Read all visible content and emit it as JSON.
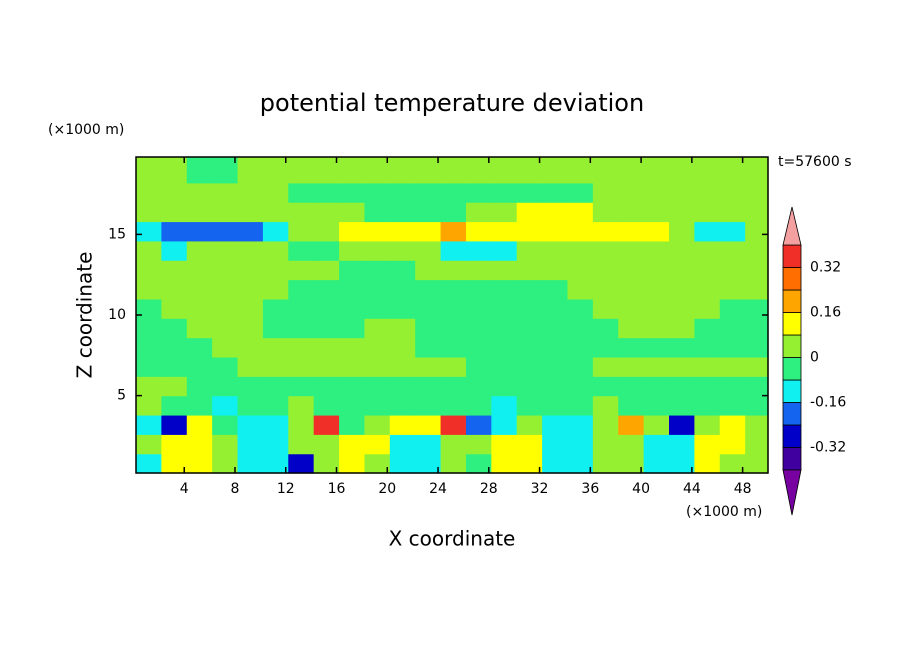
{
  "chart_data": {
    "type": "contour",
    "title": "potential temperature deviation",
    "x_label": "X coordinate",
    "y_label": "Z coordinate",
    "x_unit": "(×1000 m)",
    "y_unit": "(×1000 m)",
    "annotation": "t=57600 s",
    "xlim": [
      0.2,
      50
    ],
    "ylim": [
      0.2,
      19.8
    ],
    "xticks": [
      4,
      8,
      12,
      16,
      20,
      24,
      28,
      32,
      36,
      40,
      44,
      48
    ],
    "yticks": [
      5,
      10,
      15
    ],
    "x": [
      1.2,
      3.2,
      5.2,
      7.2,
      9.2,
      11.2,
      13.2,
      15.2,
      17.2,
      19.2,
      21.2,
      23.2,
      25.2,
      27.2,
      29.2,
      31.2,
      33.2,
      35.2,
      37.2,
      39.2,
      41.2,
      43.2,
      45.2,
      47.2,
      49.2
    ],
    "y": [
      0.8,
      2.0,
      3.2,
      4.4,
      5.6,
      6.8,
      8.0,
      9.2,
      10.4,
      11.6,
      12.8,
      14.0,
      15.2,
      16.4,
      17.6,
      18.8
    ],
    "z": [
      [
        -0.12,
        0.12,
        0.12,
        0.04,
        -0.12,
        -0.12,
        -0.28,
        0.04,
        0.12,
        0.04,
        -0.12,
        -0.12,
        0.04,
        -0.04,
        0.12,
        0.12,
        -0.12,
        -0.12,
        0.04,
        0.04,
        -0.12,
        -0.12,
        0.12,
        0.04,
        0.04
      ],
      [
        0.04,
        0.12,
        0.12,
        0.04,
        -0.12,
        -0.12,
        0.04,
        0.04,
        0.12,
        0.12,
        -0.12,
        -0.12,
        0.04,
        0.04,
        0.12,
        0.12,
        -0.12,
        -0.12,
        0.04,
        0.04,
        -0.12,
        -0.12,
        0.12,
        0.12,
        0.04
      ],
      [
        -0.12,
        -0.28,
        0.12,
        -0.04,
        -0.12,
        -0.12,
        0.04,
        0.36,
        -0.04,
        0.04,
        0.12,
        0.12,
        0.36,
        -0.2,
        -0.12,
        0.04,
        -0.12,
        -0.12,
        0.04,
        0.2,
        0.04,
        -0.28,
        0.04,
        0.12,
        0.04
      ],
      [
        0.04,
        -0.04,
        -0.04,
        -0.12,
        -0.04,
        -0.04,
        0.04,
        -0.04,
        -0.04,
        -0.04,
        -0.04,
        -0.04,
        -0.04,
        -0.04,
        -0.12,
        -0.04,
        -0.04,
        -0.04,
        0.04,
        -0.04,
        -0.04,
        -0.04,
        -0.04,
        -0.04,
        -0.04
      ],
      [
        0.04,
        0.04,
        -0.04,
        -0.04,
        -0.04,
        -0.04,
        -0.04,
        -0.04,
        -0.04,
        -0.04,
        -0.04,
        -0.04,
        -0.04,
        -0.04,
        -0.04,
        -0.04,
        -0.04,
        -0.04,
        -0.04,
        -0.04,
        -0.04,
        -0.04,
        -0.04,
        -0.04,
        -0.04
      ],
      [
        -0.04,
        -0.04,
        -0.04,
        -0.04,
        0.04,
        0.04,
        0.04,
        0.04,
        0.04,
        0.04,
        0.04,
        0.04,
        0.04,
        -0.04,
        -0.04,
        -0.04,
        -0.04,
        -0.04,
        0.04,
        0.04,
        0.04,
        0.04,
        0.04,
        0.04,
        0.04
      ],
      [
        -0.04,
        -0.04,
        -0.04,
        0.04,
        0.04,
        0.04,
        0.04,
        0.04,
        0.04,
        0.04,
        0.04,
        -0.04,
        -0.04,
        -0.04,
        -0.04,
        -0.04,
        -0.04,
        -0.04,
        -0.04,
        -0.04,
        -0.04,
        -0.04,
        -0.04,
        -0.04,
        -0.04
      ],
      [
        -0.04,
        -0.04,
        0.04,
        0.04,
        0.04,
        -0.04,
        -0.04,
        -0.04,
        -0.04,
        0.04,
        0.04,
        -0.04,
        -0.04,
        -0.04,
        -0.04,
        -0.04,
        -0.04,
        -0.04,
        -0.04,
        0.04,
        0.04,
        0.04,
        -0.04,
        -0.04,
        -0.04
      ],
      [
        -0.04,
        0.04,
        0.04,
        0.04,
        0.04,
        -0.04,
        -0.04,
        -0.04,
        -0.04,
        -0.04,
        -0.04,
        -0.04,
        -0.04,
        -0.04,
        -0.04,
        -0.04,
        -0.04,
        -0.04,
        0.04,
        0.04,
        0.04,
        0.04,
        0.04,
        -0.04,
        -0.04
      ],
      [
        0.04,
        0.04,
        0.04,
        0.04,
        0.04,
        0.04,
        -0.04,
        -0.04,
        -0.04,
        -0.04,
        -0.04,
        -0.04,
        -0.04,
        -0.04,
        -0.04,
        -0.04,
        -0.04,
        0.04,
        0.04,
        0.04,
        0.04,
        0.04,
        0.04,
        0.04,
        0.04
      ],
      [
        0.04,
        0.04,
        0.04,
        0.04,
        0.04,
        0.04,
        0.04,
        0.04,
        -0.04,
        -0.04,
        -0.04,
        0.04,
        0.04,
        0.04,
        0.04,
        0.04,
        0.04,
        0.04,
        0.04,
        0.04,
        0.04,
        0.04,
        0.04,
        0.04,
        0.04
      ],
      [
        0.04,
        -0.12,
        0.04,
        0.04,
        0.04,
        0.04,
        -0.04,
        -0.04,
        0.04,
        0.04,
        0.04,
        0.04,
        -0.12,
        -0.12,
        -0.12,
        0.04,
        0.04,
        0.04,
        0.04,
        0.04,
        0.04,
        0.04,
        0.04,
        0.04,
        0.04
      ],
      [
        -0.12,
        -0.2,
        -0.2,
        -0.2,
        -0.2,
        -0.12,
        0.04,
        0.04,
        0.12,
        0.12,
        0.12,
        0.12,
        0.2,
        0.12,
        0.12,
        0.12,
        0.12,
        0.12,
        0.12,
        0.12,
        0.12,
        0.04,
        -0.12,
        -0.12,
        0.04
      ],
      [
        0.04,
        0.04,
        0.04,
        0.04,
        0.04,
        0.04,
        0.04,
        0.04,
        0.04,
        -0.04,
        -0.04,
        -0.04,
        -0.04,
        0.04,
        0.04,
        0.12,
        0.12,
        0.12,
        0.04,
        0.04,
        0.04,
        0.04,
        0.04,
        0.04,
        0.04
      ],
      [
        0.04,
        0.04,
        0.04,
        0.04,
        0.04,
        0.04,
        -0.04,
        -0.04,
        -0.04,
        -0.04,
        -0.04,
        -0.04,
        -0.04,
        -0.04,
        -0.04,
        -0.04,
        -0.04,
        -0.04,
        0.04,
        0.04,
        0.04,
        0.04,
        0.04,
        0.04,
        0.04
      ],
      [
        0.04,
        0.04,
        -0.04,
        -0.04,
        0.04,
        0.04,
        0.04,
        0.04,
        0.04,
        0.04,
        0.04,
        0.04,
        0.04,
        0.04,
        0.04,
        0.04,
        0.04,
        0.04,
        0.04,
        0.04,
        0.04,
        0.04,
        0.04,
        0.04,
        0.04
      ]
    ],
    "levels": [
      -0.4,
      -0.32,
      -0.24,
      -0.16,
      -0.08,
      0,
      0.08,
      0.16,
      0.24,
      0.32,
      0.4
    ],
    "colors": [
      "#7800a0",
      "#4000a0",
      "#0000c8",
      "#1464f0",
      "#10f0f0",
      "#2df080",
      "#96f032",
      "#ffff00",
      "#ffa500",
      "#ff6e00",
      "#f03028",
      "#f4a0a0"
    ],
    "colorbar_ticks": [
      0.32,
      0.16,
      0,
      -0.16,
      -0.32
    ]
  }
}
